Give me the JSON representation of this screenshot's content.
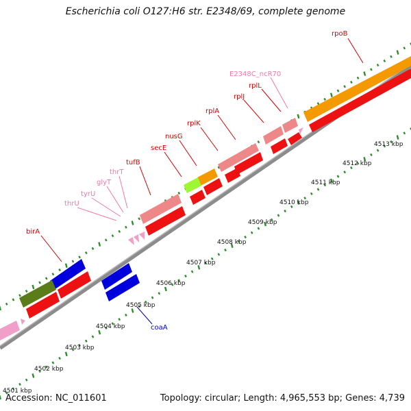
{
  "title": "Escherichia coli O127:H6 str. E2348/69, complete genome",
  "footer": {
    "accession": "Accession: NC_011601",
    "summary": "Topology: circular; Length: 4,965,553 bp; Genes: 4,739"
  },
  "colors": {
    "tick": "#2e8b2e",
    "backbone": "#8c8c8c",
    "gene_label": "#d40000",
    "rna_label": "#ee77aa",
    "coaA_label": "#0000cc",
    "cds": "#ee1111",
    "rrna": "#ee8888",
    "trna": "#f0a0c8",
    "orange": "#f49a00",
    "blue": "#0000dd",
    "olive": "#5a7d1a",
    "lime": "#9df733"
  },
  "scale": {
    "unit": "kbp",
    "ticks": [
      "4501",
      "4502",
      "4503",
      "4504",
      "4505",
      "4506",
      "4507",
      "4508",
      "4509",
      "4510",
      "4511",
      "4512",
      "4513"
    ]
  },
  "genes": [
    {
      "name": "rpoB",
      "color": "gene_label"
    },
    {
      "name": "E2348C_ncR70",
      "color": "rna_label"
    },
    {
      "name": "rplL",
      "color": "gene_label"
    },
    {
      "name": "rplJ",
      "color": "gene_label"
    },
    {
      "name": "rplA",
      "color": "gene_label"
    },
    {
      "name": "rplK",
      "color": "gene_label"
    },
    {
      "name": "nusG",
      "color": "gene_label"
    },
    {
      "name": "secE",
      "color": "gene_label"
    },
    {
      "name": "tufB",
      "color": "gene_label"
    },
    {
      "name": "thrT",
      "color": "rna_label"
    },
    {
      "name": "glyT",
      "color": "rna_label"
    },
    {
      "name": "tyrU",
      "color": "rna_label"
    },
    {
      "name": "thrU",
      "color": "rna_label"
    },
    {
      "name": "birA",
      "color": "gene_label"
    },
    {
      "name": "coaA",
      "color": "coaA_label"
    }
  ]
}
